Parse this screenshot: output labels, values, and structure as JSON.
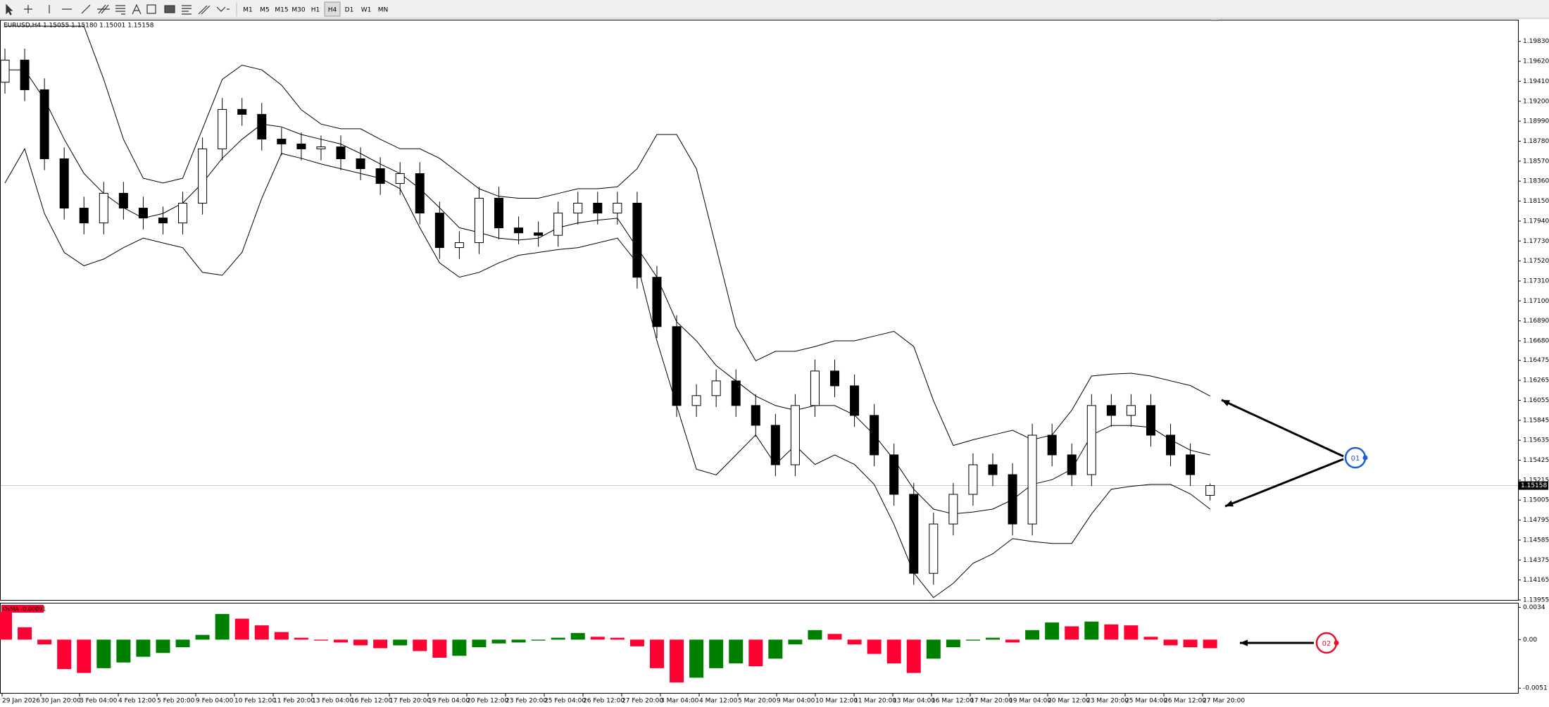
{
  "toolbar": {
    "timeframes": [
      "M1",
      "M5",
      "M15",
      "M30",
      "H1",
      "H4",
      "D1",
      "W1",
      "MN"
    ],
    "active": "H4"
  },
  "chart_data": [
    {
      "type": "candlestick",
      "title": "EURUSD,H4  1.15055 1.15180 1.15001 1.15158",
      "open": [
        1.194,
        1.19633,
        1.19321,
        1.18595,
        1.18076,
        1.1792,
        1.18232,
        1.18076,
        1.17972,
        1.1792,
        1.18128,
        1.18699,
        1.19114,
        1.19062,
        1.18802,
        1.18751,
        1.18699,
        1.1872,
        1.18595,
        1.18491,
        1.18335,
        1.18439,
        1.18024,
        1.17661,
        1.17713,
        1.1818,
        1.17868,
        1.17816,
        1.1779,
        1.18024,
        1.18128,
        1.18024,
        1.18128,
        1.17349,
        1.1683,
        1.16,
        1.16104,
        1.16259,
        1.16,
        1.15792,
        1.15377,
        1.16,
        1.16363,
        1.16207,
        1.15896,
        1.15481,
        1.15066,
        1.14235,
        1.14754,
        1.15066,
        1.15377,
        1.15273,
        1.14754,
        1.15688,
        1.15481,
        1.15273,
        1.16,
        1.15896,
        1.16,
        1.15688,
        1.15481,
        1.15055
      ],
      "high": [
        1.19753,
        1.19753,
        1.19441,
        1.18715,
        1.18196,
        1.18352,
        1.18352,
        1.18196,
        1.18092,
        1.18248,
        1.18819,
        1.19234,
        1.19234,
        1.19182,
        1.18922,
        1.18871,
        1.1884,
        1.1884,
        1.18715,
        1.18611,
        1.18559,
        1.18559,
        1.18144,
        1.17833,
        1.183,
        1.183,
        1.17988,
        1.17936,
        1.18144,
        1.18248,
        1.18248,
        1.18248,
        1.18248,
        1.17469,
        1.1695,
        1.16224,
        1.16379,
        1.16379,
        1.1612,
        1.15912,
        1.1612,
        1.16483,
        1.16483,
        1.16327,
        1.16016,
        1.15601,
        1.15186,
        1.14874,
        1.15186,
        1.15497,
        1.15497,
        1.15393,
        1.15808,
        1.15808,
        1.15601,
        1.1612,
        1.1612,
        1.1612,
        1.1612,
        1.15808,
        1.15601,
        1.1518
      ],
      "low": [
        1.1928,
        1.19201,
        1.18475,
        1.17956,
        1.178,
        1.178,
        1.17956,
        1.17852,
        1.178,
        1.178,
        1.18008,
        1.18579,
        1.18942,
        1.18682,
        1.18631,
        1.18579,
        1.18579,
        1.18475,
        1.18371,
        1.18215,
        1.18215,
        1.17904,
        1.17541,
        1.17541,
        1.17593,
        1.17748,
        1.17696,
        1.1767,
        1.1767,
        1.17904,
        1.17904,
        1.17904,
        1.17229,
        1.1671,
        1.1588,
        1.1588,
        1.15984,
        1.1588,
        1.15672,
        1.15257,
        1.15257,
        1.1588,
        1.16087,
        1.15776,
        1.15361,
        1.14946,
        1.14115,
        1.14115,
        1.14634,
        1.14946,
        1.15153,
        1.14634,
        1.14634,
        1.15361,
        1.15153,
        1.15153,
        1.15776,
        1.15776,
        1.15568,
        1.15361,
        1.15153,
        1.15001
      ],
      "close": [
        1.19633,
        1.19321,
        1.18595,
        1.18076,
        1.1792,
        1.18232,
        1.18076,
        1.17972,
        1.1792,
        1.18128,
        1.18699,
        1.19114,
        1.19062,
        1.18802,
        1.18751,
        1.18699,
        1.1872,
        1.18595,
        1.18491,
        1.18335,
        1.18439,
        1.18024,
        1.17661,
        1.17713,
        1.1818,
        1.17868,
        1.17816,
        1.1779,
        1.18024,
        1.18128,
        1.18024,
        1.18128,
        1.17349,
        1.1683,
        1.16,
        1.16104,
        1.16259,
        1.16,
        1.15792,
        1.15377,
        1.16,
        1.16363,
        1.16207,
        1.15896,
        1.15481,
        1.15066,
        1.14235,
        1.14754,
        1.15066,
        1.15377,
        1.15273,
        1.14754,
        1.15688,
        1.15481,
        1.15273,
        1.16,
        1.15896,
        1.16,
        1.15688,
        1.15481,
        1.15273,
        1.15158
      ],
      "bull_color": "#ffffff",
      "bear_color": "#000000",
      "bands": {
        "color": "#000000",
        "upper": [
          1.1999,
          1.1999,
          1.1999,
          1.1999,
          1.1999,
          1.1943,
          1.188,
          1.1839,
          1.1834,
          1.1839,
          1.1891,
          1.1943,
          1.1958,
          1.1953,
          1.1937,
          1.1911,
          1.1896,
          1.1891,
          1.1891,
          1.188,
          1.187,
          1.187,
          1.186,
          1.1844,
          1.1828,
          1.182,
          1.1818,
          1.1818,
          1.1823,
          1.1828,
          1.1828,
          1.183,
          1.1849,
          1.1885,
          1.1885,
          1.1849,
          1.1766,
          1.1683,
          1.1647,
          1.1657,
          1.1657,
          1.1662,
          1.1668,
          1.1668,
          1.1673,
          1.1678,
          1.1662,
          1.1605,
          1.1558,
          1.1564,
          1.1569,
          1.1574,
          1.1564,
          1.1569,
          1.1595,
          1.1631,
          1.1633,
          1.1634,
          1.1631,
          1.1626,
          1.1621,
          1.161
        ],
        "middle": [
          1.1953,
          1.1953,
          1.1922,
          1.188,
          1.1844,
          1.1823,
          1.1808,
          1.1797,
          1.1802,
          1.1813,
          1.1834,
          1.186,
          1.188,
          1.1896,
          1.1893,
          1.1885,
          1.188,
          1.1875,
          1.1865,
          1.1854,
          1.1844,
          1.1828,
          1.1808,
          1.1787,
          1.1782,
          1.1776,
          1.1774,
          1.1776,
          1.1787,
          1.1792,
          1.1795,
          1.1797,
          1.1766,
          1.1735,
          1.1688,
          1.1668,
          1.1642,
          1.1626,
          1.161,
          1.16,
          1.1595,
          1.16,
          1.16,
          1.159,
          1.1569,
          1.1543,
          1.1512,
          1.1491,
          1.1486,
          1.1488,
          1.1491,
          1.1501,
          1.1517,
          1.1522,
          1.1533,
          1.1569,
          1.1579,
          1.1579,
          1.1577,
          1.1564,
          1.1553,
          1.1548
        ],
        "lower": [
          1.1834,
          1.187,
          1.1802,
          1.1761,
          1.1747,
          1.1754,
          1.1766,
          1.1776,
          1.1771,
          1.1766,
          1.174,
          1.1737,
          1.1761,
          1.1818,
          1.1865,
          1.186,
          1.1854,
          1.1849,
          1.1844,
          1.1839,
          1.1828,
          1.1787,
          1.175,
          1.1735,
          1.174,
          1.175,
          1.1758,
          1.1761,
          1.1764,
          1.1766,
          1.1771,
          1.1776,
          1.175,
          1.1668,
          1.16,
          1.1533,
          1.1527,
          1.1548,
          1.1569,
          1.1538,
          1.1558,
          1.1538,
          1.1548,
          1.1538,
          1.1517,
          1.1475,
          1.1424,
          1.1398,
          1.1413,
          1.1434,
          1.1444,
          1.146,
          1.1457,
          1.1455,
          1.1455,
          1.1486,
          1.1512,
          1.1515,
          1.1517,
          1.1517,
          1.1507,
          1.1491
        ]
      },
      "current_price": 1.15158,
      "ylim": [
        1.13955,
        1.2005
      ],
      "yticks": [
        {
          "value": 1.1983,
          "label": "1.19830"
        },
        {
          "value": 1.1962,
          "label": "1.19620"
        },
        {
          "value": 1.1941,
          "label": "1.19410"
        },
        {
          "value": 1.192,
          "label": "1.19200"
        },
        {
          "value": 1.1899,
          "label": "1.18990"
        },
        {
          "value": 1.1878,
          "label": "1.18780"
        },
        {
          "value": 1.1857,
          "label": "1.18570"
        },
        {
          "value": 1.1836,
          "label": "1.18360"
        },
        {
          "value": 1.1815,
          "label": "1.18150"
        },
        {
          "value": 1.1794,
          "label": "1.17940"
        },
        {
          "value": 1.1773,
          "label": "1.17730"
        },
        {
          "value": 1.1752,
          "label": "1.17520"
        },
        {
          "value": 1.1731,
          "label": "1.17310"
        },
        {
          "value": 1.171,
          "label": "1.17100"
        },
        {
          "value": 1.1689,
          "label": "1.16890"
        },
        {
          "value": 1.1668,
          "label": "1.16680"
        },
        1.16475,
        1.16265,
        1.16055,
        1.15845,
        1.15635,
        1.15425,
        1.15215,
        1.15005,
        1.14795,
        1.14585,
        1.14375,
        1.14165,
        1.13955
      ],
      "time_labels": [
        "29 Jan 2026",
        "30 Jan 20:00",
        "3 Feb 04:00",
        "4 Feb 12:00",
        "5 Feb 20:00",
        "9 Feb 04:00",
        "10 Feb 12:00",
        "11 Feb 20:00",
        "13 Feb 04:00",
        "16 Feb 12:00",
        "17 Feb 20:00",
        "19 Feb 04:00",
        "20 Feb 12:00",
        "23 Feb 20:00",
        "25 Feb 04:00",
        "26 Feb 12:00",
        "27 Feb 20:00",
        "3 Mar 04:00",
        "4 Mar 12:00",
        "5 Mar 20:00",
        "9 Mar 04:00",
        "10 Mar 12:00",
        "11 Mar 20:00",
        "13 Mar 04:00",
        "16 Mar 12:00",
        "17 Mar 20:00",
        "19 Mar 04:00",
        "20 Mar 12:00",
        "23 Mar 20:00",
        "25 Mar 04:00",
        "26 Mar 12:00",
        "27 Mar 20:00"
      ]
    },
    {
      "type": "bar",
      "title": "OsMA -0.00091",
      "values": [
        0.0029,
        0.0013,
        -0.0005,
        -0.0031,
        -0.0035,
        -0.003,
        -0.0024,
        -0.0018,
        -0.0014,
        -0.0008,
        0.0005,
        0.0027,
        0.0022,
        0.0015,
        0.0008,
        0.0002,
        -0.0001,
        -0.0003,
        -0.0006,
        -0.0009,
        -0.0006,
        -0.0012,
        -0.0019,
        -0.0017,
        -0.0008,
        -0.0004,
        -0.0003,
        -0.0001,
        0.0002,
        0.0007,
        0.0003,
        0.0002,
        -0.0007,
        -0.003,
        -0.0045,
        -0.004,
        -0.003,
        -0.0025,
        -0.0028,
        -0.002,
        -0.0005,
        0.001,
        0.0006,
        -0.0005,
        -0.0015,
        -0.0025,
        -0.0035,
        -0.002,
        -0.0008,
        -0.0001,
        0.0002,
        -0.0003,
        0.001,
        0.0018,
        0.0014,
        0.0019,
        0.0016,
        0.0015,
        0.0003,
        -0.0006,
        -0.0008,
        -0.0009
      ],
      "up_color": "#008000",
      "down_color": "#ff0033",
      "ylim": [
        -0.0056,
        0.0038
      ],
      "yticks": [
        0.0034,
        {
          "value": 0,
          "label": "0.00"
        },
        -0.0051
      ]
    }
  ],
  "annotations": [
    {
      "label": "01",
      "color": "#1a5fd6"
    },
    {
      "label": "02",
      "color": "#e8102e"
    }
  ]
}
